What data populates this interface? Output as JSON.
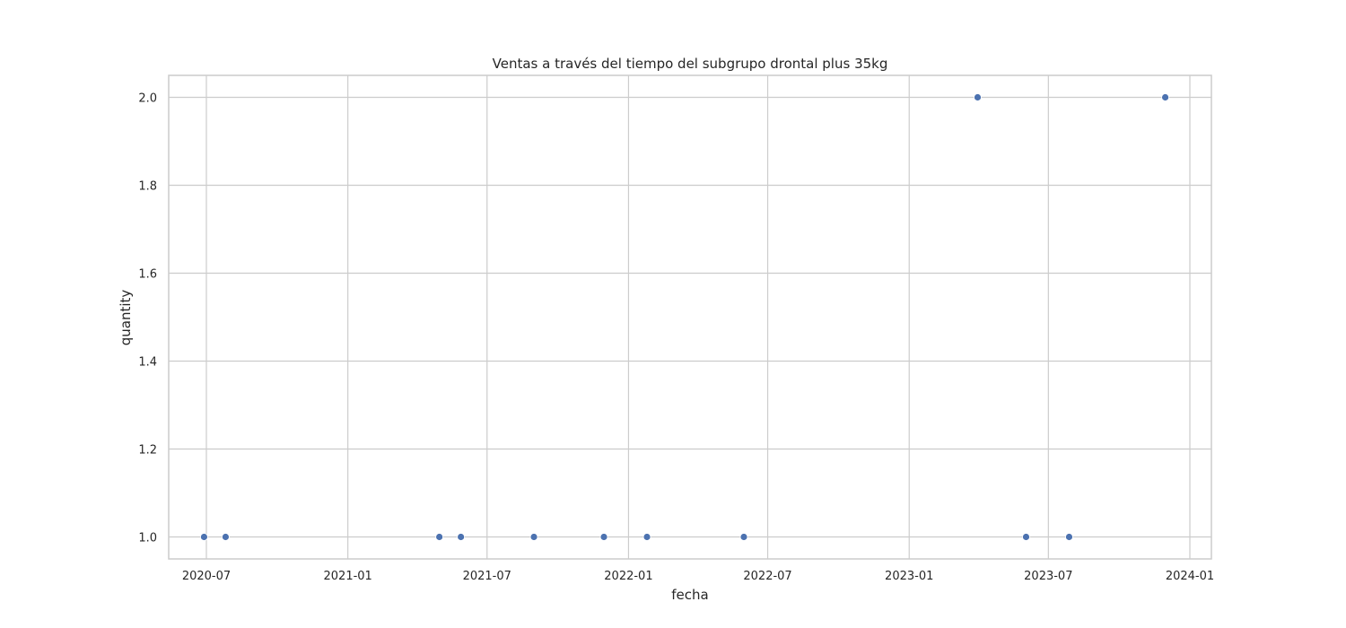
{
  "chart_data": {
    "type": "scatter",
    "title": "Ventas a través del tiempo del subgrupo drontal plus 35kg",
    "xlabel": "fecha",
    "ylabel": "quantity",
    "x_axis_type": "date",
    "xlim": [
      "2020-05-13",
      "2024-01-29"
    ],
    "ylim": [
      0.95,
      2.05
    ],
    "x_ticks": [
      "2020-07-01",
      "2021-01-01",
      "2021-07-01",
      "2022-01-01",
      "2022-07-01",
      "2023-01-01",
      "2023-07-01",
      "2024-01-01"
    ],
    "x_tick_labels": [
      "2020-07",
      "2021-01",
      "2021-07",
      "2022-01",
      "2022-07",
      "2023-01",
      "2023-07",
      "2024-01"
    ],
    "y_ticks": [
      1.0,
      1.2,
      1.4,
      1.6,
      1.8,
      2.0
    ],
    "y_tick_labels": [
      "1.0",
      "1.2",
      "1.4",
      "1.6",
      "1.8",
      "2.0"
    ],
    "grid": true,
    "legend": "none",
    "marker_color": "#4c72b0",
    "points": [
      {
        "x": "2020-06-28",
        "y": 1
      },
      {
        "x": "2020-07-26",
        "y": 1
      },
      {
        "x": "2021-04-30",
        "y": 1
      },
      {
        "x": "2021-05-28",
        "y": 1
      },
      {
        "x": "2021-08-31",
        "y": 1
      },
      {
        "x": "2021-11-30",
        "y": 1
      },
      {
        "x": "2022-01-25",
        "y": 1
      },
      {
        "x": "2022-05-31",
        "y": 1
      },
      {
        "x": "2023-03-31",
        "y": 2
      },
      {
        "x": "2023-06-02",
        "y": 1
      },
      {
        "x": "2023-07-28",
        "y": 1
      },
      {
        "x": "2023-11-30",
        "y": 2
      }
    ]
  }
}
